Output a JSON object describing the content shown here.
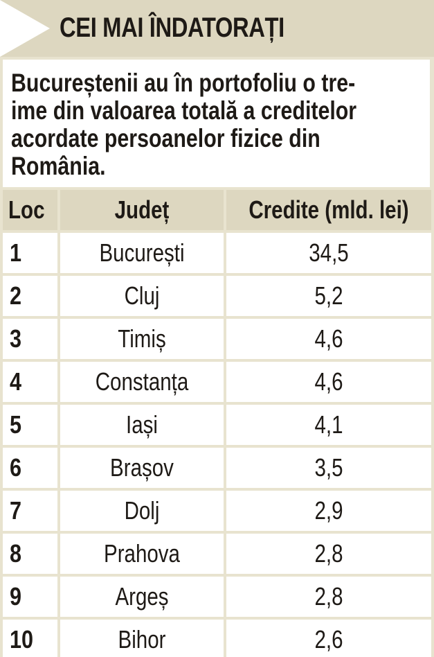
{
  "title": "CEI MAI ÎNDATORAȚI",
  "intro_lines": [
    "Bucureștenii au în portofoliu o tre-",
    "ime din valoarea totală a creditelor",
    "acordate persoanelor fizice din",
    "România."
  ],
  "table": {
    "headers": [
      "Loc",
      "Județ",
      "Credite (mld. lei)"
    ],
    "rows": [
      [
        "1",
        "București",
        "34,5"
      ],
      [
        "2",
        "Cluj",
        "5,2"
      ],
      [
        "3",
        "Timiș",
        "4,6"
      ],
      [
        "4",
        "Constanța",
        "4,6"
      ],
      [
        "5",
        "Iași",
        "4,1"
      ],
      [
        "6",
        "Brașov",
        "3,5"
      ],
      [
        "7",
        "Dolj",
        "2,9"
      ],
      [
        "8",
        "Prahova",
        "2,8"
      ],
      [
        "9",
        "Argeș",
        "2,8"
      ],
      [
        "10",
        "Bihor",
        "2,6"
      ]
    ]
  },
  "colors": {
    "panel_background": "#e8e3cf",
    "header_background": "#ddd7c0",
    "cell_background": "#ffffff",
    "text": "#1e1a16"
  }
}
